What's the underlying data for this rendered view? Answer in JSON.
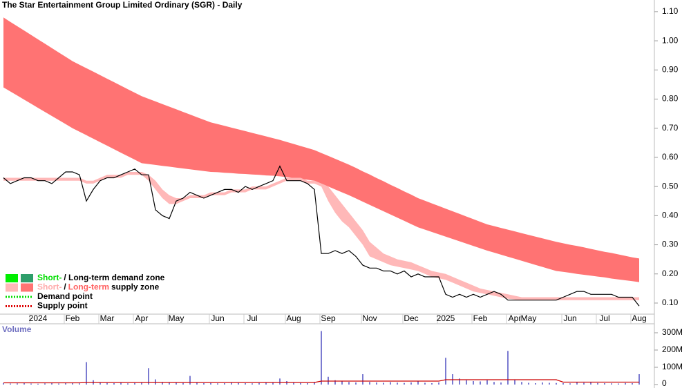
{
  "chart_data": [
    {
      "type": "line",
      "title": "The Star Entertainment Group Limited Ordinary (SGR) - Daily",
      "categories": [
        null,
        null,
        null,
        null,
        null,
        "2024",
        null,
        null,
        null,
        null,
        "Feb",
        null,
        null,
        null,
        null,
        "Mar",
        null,
        null,
        null,
        null,
        "Apr",
        null,
        null,
        null,
        null,
        "May",
        null,
        null,
        null,
        null,
        null,
        "Jun",
        null,
        null,
        null,
        null,
        "Jul",
        null,
        null,
        null,
        null,
        null,
        "Aug",
        null,
        null,
        null,
        null,
        "Sep",
        null,
        null,
        null,
        null,
        null,
        "Nov",
        null,
        null,
        null,
        null,
        null,
        "Dec",
        null,
        null,
        null,
        null,
        "2025",
        null,
        null,
        null,
        null,
        "Feb",
        null,
        null,
        null,
        null,
        "Apr",
        null,
        "May",
        null,
        null,
        null,
        null,
        null,
        "Jun",
        null,
        null,
        null,
        null,
        "Jul",
        null,
        null,
        null,
        null,
        "Aug"
      ],
      "ylim": [
        0.062,
        1.14
      ],
      "yticks": [
        {
          "value": 0.1,
          "label": "0.10"
        },
        {
          "value": 0.2,
          "label": "0.20"
        },
        {
          "value": 0.3,
          "label": "0.30"
        },
        {
          "value": 0.4,
          "label": "0.40"
        },
        {
          "value": 0.5,
          "label": "0.50"
        },
        {
          "value": 0.6,
          "label": "0.60"
        },
        {
          "value": 0.7,
          "label": "0.70"
        },
        {
          "value": 0.8,
          "label": "0.80"
        },
        {
          "value": 0.9,
          "label": "0.90"
        },
        {
          "value": 1.0,
          "label": "1.00"
        },
        {
          "value": 1.1,
          "label": "1.10"
        }
      ],
      "bands": [
        {
          "color": "#ff7373",
          "upper": [
            1.08,
            1.065,
            1.05,
            1.035,
            1.02,
            1.005,
            0.99,
            0.975,
            0.96,
            0.945,
            0.93,
            0.918,
            0.906,
            0.894,
            0.882,
            0.87,
            0.858,
            0.846,
            0.834,
            0.822,
            0.81,
            0.801,
            0.792,
            0.783,
            0.774,
            0.765,
            0.756,
            0.747,
            0.738,
            0.729,
            0.72,
            0.714,
            0.708,
            0.702,
            0.696,
            0.69,
            0.684,
            0.678,
            0.672,
            0.666,
            0.66,
            0.653,
            0.646,
            0.639,
            0.632,
            0.625,
            0.615,
            0.605,
            0.595,
            0.585,
            0.575,
            0.564,
            0.552,
            0.541,
            0.529,
            0.518,
            0.506,
            0.495,
            0.483,
            0.472,
            0.46,
            0.451,
            0.442,
            0.433,
            0.424,
            0.415,
            0.406,
            0.397,
            0.388,
            0.379,
            0.37,
            0.364,
            0.358,
            0.352,
            0.346,
            0.34,
            0.334,
            0.328,
            0.322,
            0.316,
            0.31,
            0.305,
            0.3,
            0.296,
            0.291,
            0.286,
            0.281,
            0.276,
            0.272,
            0.267,
            0.262,
            0.257,
            0.253
          ],
          "lower": [
            0.84,
            0.826,
            0.812,
            0.798,
            0.784,
            0.77,
            0.756,
            0.742,
            0.728,
            0.714,
            0.7,
            0.688,
            0.676,
            0.664,
            0.652,
            0.64,
            0.628,
            0.616,
            0.604,
            0.592,
            0.58,
            0.577,
            0.574,
            0.571,
            0.568,
            0.565,
            0.562,
            0.559,
            0.556,
            0.553,
            0.55,
            0.549,
            0.547,
            0.546,
            0.544,
            0.543,
            0.541,
            0.54,
            0.538,
            0.537,
            0.535,
            0.532,
            0.529,
            0.526,
            0.523,
            0.52,
            0.51,
            0.5,
            0.49,
            0.48,
            0.47,
            0.459,
            0.448,
            0.437,
            0.426,
            0.415,
            0.404,
            0.393,
            0.382,
            0.371,
            0.36,
            0.352,
            0.344,
            0.336,
            0.328,
            0.32,
            0.312,
            0.304,
            0.296,
            0.288,
            0.28,
            0.273,
            0.266,
            0.259,
            0.252,
            0.245,
            0.238,
            0.231,
            0.224,
            0.217,
            0.21,
            0.207,
            0.204,
            0.2,
            0.197,
            0.194,
            0.191,
            0.188,
            0.184,
            0.181,
            0.178,
            0.175,
            0.172
          ]
        },
        {
          "color": "#ffb8b8",
          "upper": [
            0.53,
            0.53,
            0.53,
            0.53,
            0.53,
            0.53,
            0.53,
            0.53,
            0.53,
            0.53,
            0.53,
            0.53,
            0.52,
            0.52,
            0.53,
            0.54,
            0.54,
            0.54,
            0.55,
            0.55,
            0.55,
            0.54,
            0.52,
            0.49,
            0.47,
            0.46,
            0.46,
            0.47,
            0.47,
            0.47,
            0.48,
            0.48,
            0.48,
            0.49,
            0.49,
            0.49,
            0.5,
            0.5,
            0.5,
            0.51,
            0.52,
            0.53,
            0.53,
            0.53,
            0.52,
            0.52,
            0.51,
            0.5,
            0.47,
            0.44,
            0.41,
            0.38,
            0.35,
            0.31,
            0.29,
            0.27,
            0.26,
            0.25,
            0.245,
            0.24,
            0.23,
            0.22,
            0.21,
            0.205,
            0.2,
            0.19,
            0.18,
            0.17,
            0.16,
            0.15,
            0.145,
            0.14,
            0.135,
            0.13,
            0.125,
            0.12,
            0.12,
            0.12,
            0.12,
            0.12,
            0.12,
            0.12,
            0.12,
            0.12,
            0.12,
            0.12,
            0.12,
            0.12,
            0.12,
            0.12,
            0.12,
            0.12,
            0.12
          ],
          "lower": [
            0.52,
            0.52,
            0.52,
            0.52,
            0.52,
            0.52,
            0.52,
            0.52,
            0.52,
            0.52,
            0.52,
            0.52,
            0.51,
            0.51,
            0.52,
            0.53,
            0.53,
            0.53,
            0.54,
            0.54,
            0.54,
            0.52,
            0.49,
            0.46,
            0.44,
            0.44,
            0.45,
            0.46,
            0.46,
            0.46,
            0.47,
            0.47,
            0.47,
            0.48,
            0.48,
            0.48,
            0.49,
            0.49,
            0.49,
            0.5,
            0.51,
            0.52,
            0.52,
            0.52,
            0.51,
            0.51,
            0.5,
            0.45,
            0.41,
            0.38,
            0.36,
            0.33,
            0.3,
            0.26,
            0.25,
            0.24,
            0.23,
            0.225,
            0.22,
            0.215,
            0.21,
            0.2,
            0.19,
            0.185,
            0.18,
            0.17,
            0.16,
            0.15,
            0.14,
            0.135,
            0.13,
            0.125,
            0.12,
            0.115,
            0.112,
            0.11,
            0.11,
            0.11,
            0.11,
            0.11,
            0.11,
            0.11,
            0.11,
            0.11,
            0.11,
            0.11,
            0.11,
            0.11,
            0.11,
            0.11,
            0.11,
            0.11,
            0.11
          ]
        }
      ],
      "series": [
        {
          "color": "#000000",
          "values": [
            0.53,
            0.51,
            0.52,
            0.53,
            0.53,
            0.52,
            0.52,
            0.51,
            0.53,
            0.55,
            0.55,
            0.54,
            0.45,
            0.49,
            0.52,
            0.53,
            0.53,
            0.54,
            0.55,
            0.56,
            0.54,
            0.54,
            0.42,
            0.4,
            0.39,
            0.45,
            0.46,
            0.48,
            0.47,
            0.46,
            0.47,
            0.48,
            0.49,
            0.49,
            0.48,
            0.5,
            0.49,
            0.5,
            0.51,
            0.52,
            0.57,
            0.52,
            0.52,
            0.52,
            0.51,
            0.49,
            0.27,
            0.27,
            0.28,
            0.27,
            0.28,
            0.26,
            0.23,
            0.22,
            0.22,
            0.21,
            0.21,
            0.2,
            0.21,
            0.19,
            0.2,
            0.19,
            0.19,
            0.19,
            0.13,
            0.12,
            0.13,
            0.12,
            0.13,
            0.12,
            0.13,
            0.14,
            0.13,
            0.11,
            0.11,
            0.11,
            0.11,
            0.11,
            0.11,
            0.11,
            0.11,
            0.12,
            0.13,
            0.14,
            0.14,
            0.13,
            0.13,
            0.13,
            0.13,
            0.12,
            0.12,
            0.12,
            0.09
          ]
        }
      ],
      "legend": {
        "position": "lower left",
        "items": [
          {
            "colors": [
              "#00ee00",
              "#2e9e6a"
            ],
            "parts": [
              "Short-",
              "/ Long-term demand zone"
            ],
            "part_colors": [
              "#00dd00",
              "#000000"
            ]
          },
          {
            "colors": [
              "#ffb8b8",
              "#ff7373"
            ],
            "parts": [
              "Short-",
              "/",
              "Long-term",
              "supply zone"
            ],
            "part_colors": [
              "#ffaaaa",
              "#000000",
              "#ff6060",
              "#000000"
            ]
          },
          {
            "line_color": "#00dd00",
            "parts": [
              "Demand point"
            ],
            "part_colors": [
              "#000000"
            ]
          },
          {
            "line_color": "#dd0000",
            "parts": [
              "Supply point"
            ],
            "part_colors": [
              "#000000"
            ]
          }
        ]
      }
    },
    {
      "type": "bar",
      "title": "Volume",
      "ylim": [
        0,
        348000000
      ],
      "yticks": [
        0,
        {
          "value": 100000000,
          "label": "100M"
        },
        {
          "value": 200000000,
          "label": "200M"
        },
        {
          "value": 300000000,
          "label": "300M"
        }
      ],
      "series": [
        {
          "type": "bar",
          "color": "#7b7bd1",
          "values": [
            8000000,
            6000000,
            7000000,
            9000000,
            6000000,
            5000000,
            7000000,
            8000000,
            6000000,
            10000000,
            9000000,
            7000000,
            130000000,
            25000000,
            12000000,
            9000000,
            8000000,
            10000000,
            7000000,
            9000000,
            12000000,
            95000000,
            30000000,
            15000000,
            12000000,
            10000000,
            9000000,
            50000000,
            10000000,
            8000000,
            9000000,
            7000000,
            8000000,
            10000000,
            9000000,
            8000000,
            7000000,
            9000000,
            12000000,
            10000000,
            35000000,
            20000000,
            12000000,
            9000000,
            8000000,
            15000000,
            310000000,
            45000000,
            25000000,
            18000000,
            15000000,
            12000000,
            60000000,
            15000000,
            12000000,
            10000000,
            14000000,
            11000000,
            9000000,
            12000000,
            20000000,
            10000000,
            8000000,
            12000000,
            155000000,
            60000000,
            35000000,
            25000000,
            20000000,
            18000000,
            25000000,
            15000000,
            12000000,
            195000000,
            30000000,
            15000000,
            10000000,
            8000000,
            12000000,
            10000000,
            9000000,
            8000000,
            7000000,
            15000000,
            10000000,
            12000000,
            9000000,
            8000000,
            7000000,
            6000000,
            9000000,
            8000000,
            60000000
          ]
        },
        {
          "type": "line",
          "color": "#cc0000",
          "values": [
            10000000,
            10000000,
            10000000,
            10000000,
            10000000,
            10000000,
            10000000,
            10000000,
            10000000,
            10000000,
            10000000,
            10000000,
            12000000,
            12000000,
            12000000,
            12000000,
            12000000,
            12000000,
            12000000,
            12000000,
            12000000,
            12000000,
            12000000,
            12000000,
            12000000,
            12000000,
            12000000,
            12000000,
            12000000,
            12000000,
            12000000,
            12000000,
            12000000,
            12000000,
            12000000,
            12000000,
            12000000,
            12000000,
            12000000,
            12000000,
            12000000,
            12000000,
            12000000,
            12000000,
            12000000,
            12000000,
            20000000,
            20000000,
            20000000,
            20000000,
            20000000,
            20000000,
            20000000,
            20000000,
            20000000,
            20000000,
            20000000,
            20000000,
            20000000,
            20000000,
            20000000,
            20000000,
            20000000,
            20000000,
            28000000,
            28000000,
            28000000,
            28000000,
            28000000,
            28000000,
            28000000,
            28000000,
            28000000,
            28000000,
            28000000,
            28000000,
            28000000,
            28000000,
            28000000,
            28000000,
            28000000,
            14000000,
            14000000,
            14000000,
            14000000,
            14000000,
            14000000,
            14000000,
            14000000,
            14000000,
            14000000,
            14000000,
            14000000
          ]
        }
      ]
    }
  ]
}
